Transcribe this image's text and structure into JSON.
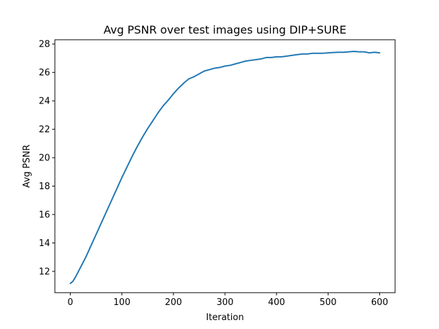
{
  "chart_data": {
    "type": "line",
    "title": "Avg PSNR over test images using DIP+SURE",
    "xlabel": "Iteration",
    "ylabel": "Avg PSNR",
    "xlim": [
      -30,
      630
    ],
    "ylim": [
      10.5,
      28.3
    ],
    "x_ticks": [
      0,
      100,
      200,
      300,
      400,
      500,
      600
    ],
    "y_ticks": [
      12,
      14,
      16,
      18,
      20,
      22,
      24,
      26,
      28
    ],
    "grid": false,
    "series": [
      {
        "color": "#1f77b4",
        "points": [
          [
            0,
            11.15
          ],
          [
            5,
            11.3
          ],
          [
            10,
            11.6
          ],
          [
            20,
            12.3
          ],
          [
            30,
            13.0
          ],
          [
            40,
            13.8
          ],
          [
            50,
            14.6
          ],
          [
            60,
            15.4
          ],
          [
            70,
            16.2
          ],
          [
            80,
            17.0
          ],
          [
            90,
            17.8
          ],
          [
            100,
            18.6
          ],
          [
            110,
            19.35
          ],
          [
            120,
            20.1
          ],
          [
            130,
            20.8
          ],
          [
            140,
            21.45
          ],
          [
            150,
            22.05
          ],
          [
            160,
            22.6
          ],
          [
            170,
            23.15
          ],
          [
            180,
            23.65
          ],
          [
            190,
            24.05
          ],
          [
            200,
            24.5
          ],
          [
            210,
            24.9
          ],
          [
            220,
            25.25
          ],
          [
            230,
            25.55
          ],
          [
            240,
            25.7
          ],
          [
            250,
            25.9
          ],
          [
            260,
            26.1
          ],
          [
            270,
            26.2
          ],
          [
            280,
            26.3
          ],
          [
            290,
            26.35
          ],
          [
            300,
            26.45
          ],
          [
            310,
            26.5
          ],
          [
            320,
            26.6
          ],
          [
            330,
            26.7
          ],
          [
            340,
            26.8
          ],
          [
            350,
            26.85
          ],
          [
            360,
            26.9
          ],
          [
            370,
            26.95
          ],
          [
            380,
            27.05
          ],
          [
            390,
            27.05
          ],
          [
            400,
            27.1
          ],
          [
            410,
            27.1
          ],
          [
            420,
            27.15
          ],
          [
            430,
            27.2
          ],
          [
            440,
            27.25
          ],
          [
            450,
            27.3
          ],
          [
            460,
            27.3
          ],
          [
            470,
            27.35
          ],
          [
            480,
            27.35
          ],
          [
            490,
            27.35
          ],
          [
            500,
            27.38
          ],
          [
            510,
            27.4
          ],
          [
            520,
            27.42
          ],
          [
            530,
            27.42
          ],
          [
            540,
            27.45
          ],
          [
            550,
            27.48
          ],
          [
            560,
            27.45
          ],
          [
            570,
            27.45
          ],
          [
            580,
            27.38
          ],
          [
            590,
            27.42
          ],
          [
            600,
            27.38
          ]
        ]
      }
    ]
  }
}
